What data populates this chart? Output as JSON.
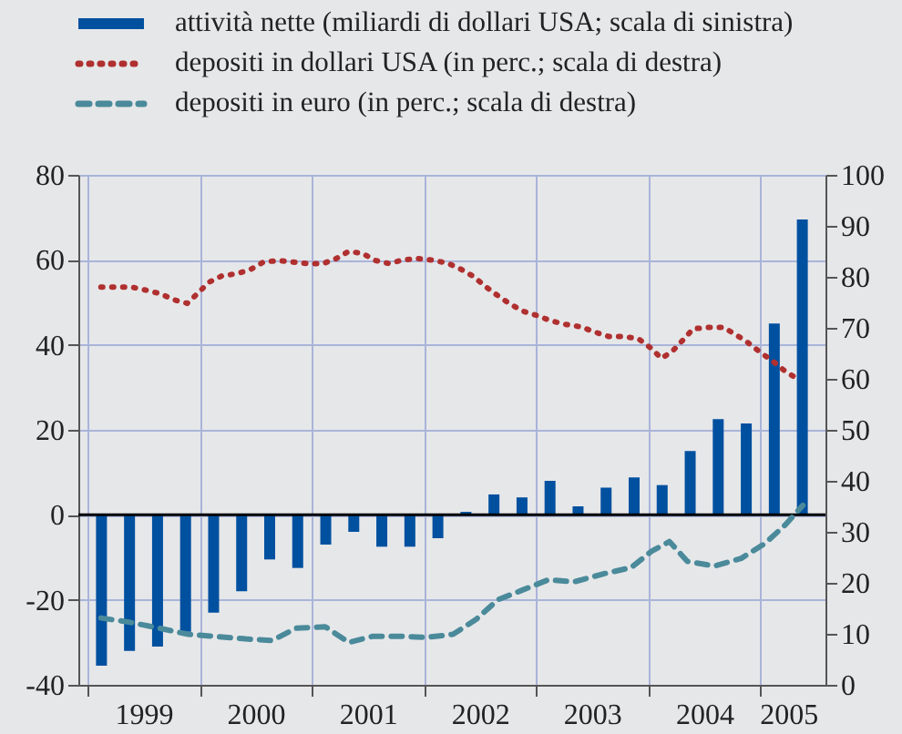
{
  "chart_data": {
    "type": "bar",
    "legend": "top",
    "grid": true,
    "xlim": [
      1999,
      2005.5
    ],
    "xticks": [
      {
        "value": 1999,
        "label": null
      },
      {
        "value": 1999.5,
        "label": "1999"
      },
      {
        "value": 2000,
        "label": null
      },
      {
        "value": 2000.5,
        "label": "2000"
      },
      {
        "value": 2001,
        "label": null
      },
      {
        "value": 2001.5,
        "label": "2001"
      },
      {
        "value": 2002,
        "label": null
      },
      {
        "value": 2002.5,
        "label": "2002"
      },
      {
        "value": 2003,
        "label": null
      },
      {
        "value": 2003.5,
        "label": "2003"
      },
      {
        "value": 2004,
        "label": null
      },
      {
        "value": 2004.5,
        "label": "2004"
      },
      {
        "value": 2005,
        "label": null
      },
      {
        "value": 2005.25,
        "label": "2005"
      }
    ],
    "ylim": [
      -40,
      80
    ],
    "yticks": [
      -40,
      -20,
      0,
      20,
      40,
      60,
      80
    ],
    "y2lim": [
      0,
      100
    ],
    "y2ticks": [
      0,
      10,
      20,
      30,
      40,
      50,
      60,
      70,
      80,
      90,
      100
    ],
    "ref_lines": [
      {
        "axis": "y",
        "value": 0,
        "color": "#000000"
      }
    ],
    "series": [
      {
        "name": "attività nette (miliardi di dollari USA; scala di sinistra)",
        "color": "#0050a0",
        "x": [
          1999.125,
          1999.375,
          1999.625,
          1999.875,
          2000.125,
          2000.375,
          2000.625,
          2000.875,
          2001.125,
          2001.375,
          2001.625,
          2001.875,
          2002.125,
          2002.375,
          2002.625,
          2002.875,
          2003.125,
          2003.375,
          2003.625,
          2003.875,
          2004.125,
          2004.375,
          2004.625,
          2004.875,
          2005.125,
          2005.375
        ],
        "values": [
          -35.5,
          -32,
          -31,
          -27.5,
          -23,
          -18,
          -10.5,
          -12.5,
          -7,
          -4,
          -7.5,
          -7.5,
          -5.5,
          0.7,
          4.8,
          4.1,
          8,
          2,
          6.4,
          8.8,
          7,
          15,
          22.5,
          21.5,
          45,
          69.5
        ]
      },
      {
        "name": "depositi in dollari USA (in perc.; scala di destra)",
        "type": "line",
        "line_style": "dotted",
        "axis": "y2",
        "color": "#b03030",
        "x": [
          1999.12,
          1999.26,
          1999.39,
          1999.52,
          1999.65,
          1999.77,
          1999.89,
          1999.99,
          2000.08,
          2000.2,
          2000.33,
          2000.45,
          2000.57,
          2000.7,
          2000.83,
          2000.96,
          2001.1,
          2001.22,
          2001.33,
          2001.45,
          2001.57,
          2001.69,
          2001.81,
          2001.94,
          2002.07,
          2002.21,
          2002.33,
          2002.44,
          2002.55,
          2002.66,
          2002.76,
          2002.88,
          2003.01,
          2003.13,
          2003.26,
          2003.4,
          2003.52,
          2003.65,
          2003.78,
          2003.91,
          2004.02,
          2004.12,
          2004.22,
          2004.31,
          2004.4,
          2004.53,
          2004.67,
          2004.78,
          2004.89,
          2005,
          2005.11,
          2005.21,
          2005.33
        ],
        "values": [
          78,
          78,
          78,
          77.4,
          76.7,
          75.5,
          74.8,
          76.9,
          78.9,
          80.2,
          80.6,
          81.4,
          82.9,
          83.2,
          82.9,
          82.6,
          82.6,
          83.6,
          85,
          84.6,
          83.2,
          82.6,
          83.3,
          83.6,
          83.3,
          82.7,
          81.5,
          80.1,
          78.1,
          76.3,
          74.8,
          73.3,
          72.4,
          71.4,
          70.7,
          70.2,
          69.2,
          68.3,
          68.3,
          67.9,
          66.1,
          64,
          65.5,
          67.6,
          69.8,
          70.1,
          70.1,
          68.7,
          67.1,
          65.2,
          63.5,
          61.7,
          60
        ]
      },
      {
        "name": "depositi in euro (in perc.; scala di destra)",
        "type": "line",
        "line_style": "dashed",
        "axis": "y2",
        "color": "#4a8a9a",
        "x": [
          1999.12,
          1999.37,
          1999.64,
          1999.9,
          2000.14,
          2000.41,
          2000.65,
          2000.86,
          2001.12,
          2001.33,
          2001.54,
          2001.81,
          2002.02,
          2002.26,
          2002.47,
          2002.66,
          2002.87,
          2003.11,
          2003.34,
          2003.61,
          2003.85,
          2004.03,
          2004.19,
          2004.35,
          2004.59,
          2004.83,
          2005.04,
          2005.22,
          2005.38
        ],
        "values": [
          13.1,
          12.3,
          11.1,
          9.9,
          9.5,
          9,
          8.7,
          11.1,
          11.4,
          8.3,
          9.5,
          9.5,
          9.3,
          9.9,
          12.9,
          16.7,
          18.5,
          20.6,
          20.2,
          21.8,
          23,
          26.2,
          28.1,
          24.2,
          23.3,
          24.8,
          27.7,
          31.3,
          35.2
        ]
      }
    ]
  }
}
